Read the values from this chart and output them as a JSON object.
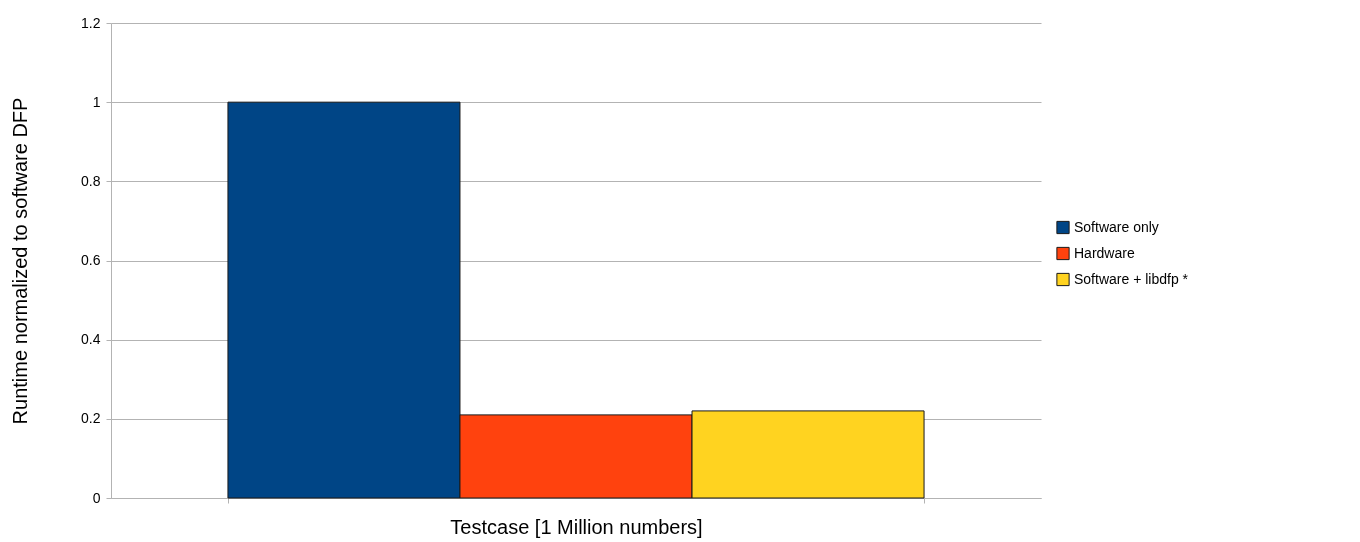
{
  "chart_data": {
    "type": "bar",
    "xlabel": "Testcase [1 Million numbers]",
    "ylabel": "Runtime normalized to software DFP",
    "categories": [
      null
    ],
    "series": [
      {
        "name": "Software only",
        "color": "#004586",
        "values": [
          1.0
        ]
      },
      {
        "name": "Hardware",
        "color": "#ff420e",
        "values": [
          0.21
        ]
      },
      {
        "name": "Software + libdfp *",
        "color": "#ffd320",
        "values": [
          0.22
        ]
      }
    ],
    "ylim": [
      0,
      1.2
    ],
    "yticks": [
      0,
      0.2,
      0.4,
      0.6,
      0.8,
      1,
      1.2
    ],
    "grid": "y",
    "legend": "right",
    "tick_labels": "y"
  }
}
